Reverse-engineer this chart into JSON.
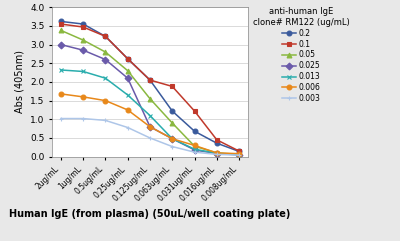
{
  "x_labels": [
    "2ug/mL",
    "1ug/mL",
    "0.5ug/mL",
    "0.25ug/mL",
    "0.125ug/mL",
    "0.063ug/mL",
    "0.031ug/mL",
    "0.016ug/mL",
    "0.008ug/mL"
  ],
  "series": [
    {
      "label": "0.2",
      "color": "#3a5a9c",
      "marker": "o",
      "values": [
        3.62,
        3.55,
        3.22,
        2.62,
        2.05,
        1.22,
        0.68,
        0.36,
        0.14
      ]
    },
    {
      "label": "0.1",
      "color": "#c0392b",
      "marker": "s",
      "values": [
        3.55,
        3.47,
        3.22,
        2.62,
        2.05,
        1.88,
        1.22,
        0.45,
        0.15
      ]
    },
    {
      "label": "0.05",
      "color": "#8ab840",
      "marker": "^",
      "values": [
        3.38,
        3.12,
        2.8,
        2.3,
        1.55,
        0.9,
        0.28,
        0.1,
        0.06
      ]
    },
    {
      "label": "0.025",
      "color": "#6a5aaa",
      "marker": "D",
      "values": [
        3.0,
        2.85,
        2.6,
        2.1,
        0.8,
        0.48,
        0.18,
        0.08,
        0.05
      ]
    },
    {
      "label": "0.013",
      "color": "#2aadad",
      "marker": "x",
      "values": [
        2.32,
        2.28,
        2.1,
        1.65,
        1.1,
        0.48,
        0.2,
        0.09,
        0.05
      ]
    },
    {
      "label": "0.006",
      "color": "#e8881a",
      "marker": "o",
      "values": [
        1.68,
        1.6,
        1.5,
        1.25,
        0.8,
        0.48,
        0.3,
        0.1,
        0.08
      ]
    },
    {
      "label": "0.003",
      "color": "#aec6e8",
      "marker": "+",
      "values": [
        1.02,
        1.02,
        0.97,
        0.78,
        0.5,
        0.27,
        0.12,
        0.06,
        0.04
      ]
    }
  ],
  "ylabel": "Abs (405nm)",
  "xlabel": "Human IgE (from plasma) (50uL/well coating plate)",
  "legend_title": "anti-human IgE\nclone# RM122 (ug/mL)",
  "ylim": [
    0,
    4
  ],
  "yticks": [
    0,
    0.5,
    1,
    1.5,
    2,
    2.5,
    3,
    3.5,
    4
  ],
  "background_color": "#e8e8e8",
  "plot_bg_color": "#ffffff"
}
